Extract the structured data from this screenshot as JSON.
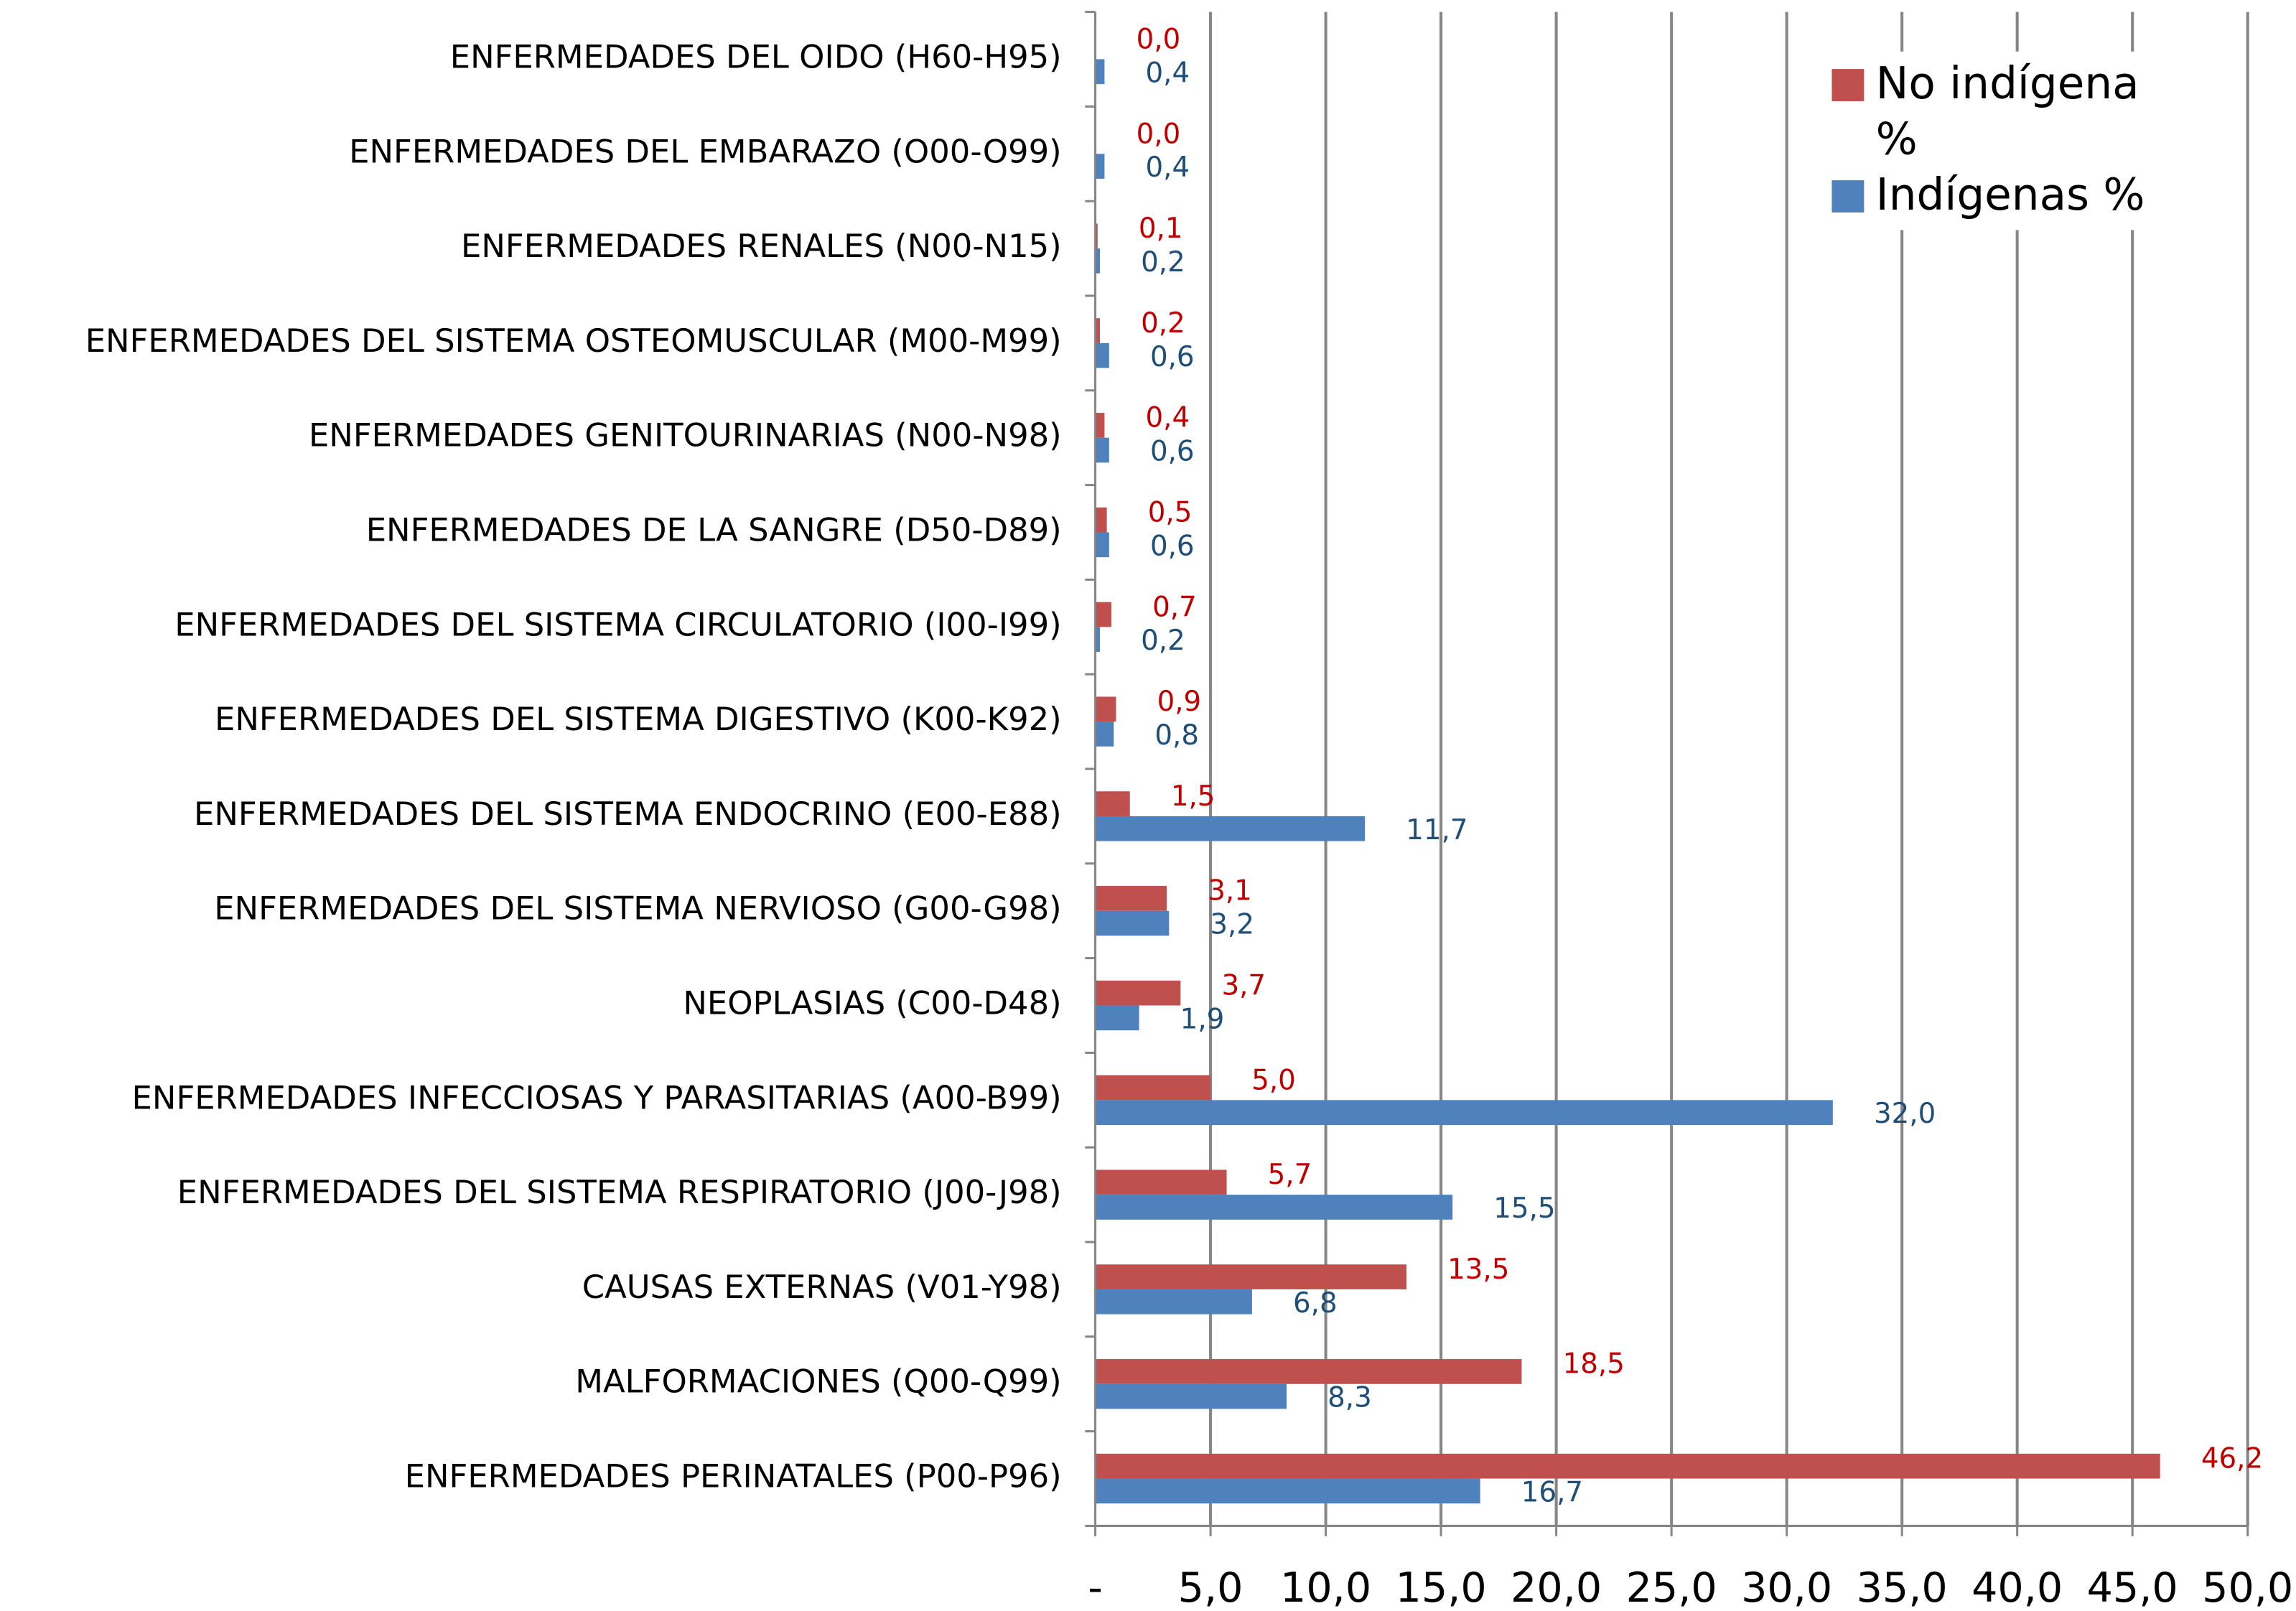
{
  "chart_data": {
    "type": "bar",
    "orientation": "horizontal",
    "categories": [
      "ENFERMEDADES DEL OIDO (H60-H95)",
      "ENFERMEDADES DEL EMBARAZO (O00-O99)",
      "ENFERMEDADES RENALES (N00-N15)",
      "ENFERMEDADES DEL SISTEMA OSTEOMUSCULAR (M00-M99)",
      "ENFERMEDADES GENITOURINARIAS (N00-N98)",
      "ENFERMEDADES DE LA SANGRE (D50-D89)",
      "ENFERMEDADES DEL SISTEMA CIRCULATORIO (I00-I99)",
      "ENFERMEDADES DEL SISTEMA DIGESTIVO (K00-K92)",
      "ENFERMEDADES DEL SISTEMA ENDOCRINO (E00-E88)",
      "ENFERMEDADES DEL SISTEMA NERVIOSO (G00-G98)",
      "NEOPLASIAS (C00-D48)",
      "ENFERMEDADES INFECCIOSAS Y PARASITARIAS (A00-B99)",
      "ENFERMEDADES DEL SISTEMA RESPIRATORIO (J00-J98)",
      "CAUSAS EXTERNAS (V01-Y98)",
      "MALFORMACIONES (Q00-Q99)",
      "ENFERMEDADES PERINATALES (P00-P96)"
    ],
    "series": [
      {
        "name": "No indígena %",
        "color": "#c0504d",
        "label_color": "#c00000",
        "values": [
          0.0,
          0.0,
          0.1,
          0.2,
          0.4,
          0.5,
          0.7,
          0.9,
          1.5,
          3.1,
          3.7,
          5.0,
          5.7,
          13.5,
          18.5,
          46.2
        ],
        "value_labels": [
          "0,0",
          "0,0",
          "0,1",
          "0,2",
          "0,4",
          "0,5",
          "0,7",
          "0,9",
          "1,5",
          "3,1",
          "3,7",
          "5,0",
          "5,7",
          "13,5",
          "18,5",
          "46,2"
        ]
      },
      {
        "name": "Indígenas %",
        "color": "#4f81bd",
        "label_color": "#1f4e79",
        "values": [
          0.4,
          0.4,
          0.2,
          0.6,
          0.6,
          0.6,
          0.2,
          0.8,
          11.7,
          3.2,
          1.9,
          32.0,
          15.5,
          6.8,
          8.3,
          16.7
        ],
        "value_labels": [
          "0,4",
          "0,4",
          "0,2",
          "0,6",
          "0,6",
          "0,6",
          "0,2",
          "0,8",
          "11,7",
          "3,2",
          "1,9",
          "32,0",
          "15,5",
          "6,8",
          "8,3",
          "16,7"
        ]
      }
    ],
    "xlim": [
      0,
      50
    ],
    "xticks": [
      {
        "value": 0,
        "label": "-"
      },
      {
        "value": 5,
        "label": "5,0"
      },
      {
        "value": 10,
        "label": "10,0"
      },
      {
        "value": 15,
        "label": "15,0"
      },
      {
        "value": 20,
        "label": "20,0"
      },
      {
        "value": 25,
        "label": "25,0"
      },
      {
        "value": 30,
        "label": "30,0"
      },
      {
        "value": 35,
        "label": "35,0"
      },
      {
        "value": 40,
        "label": "40,0"
      },
      {
        "value": 45,
        "label": "45,0"
      },
      {
        "value": 50,
        "label": "50,0"
      }
    ],
    "grid": true,
    "legend": "top-right"
  }
}
